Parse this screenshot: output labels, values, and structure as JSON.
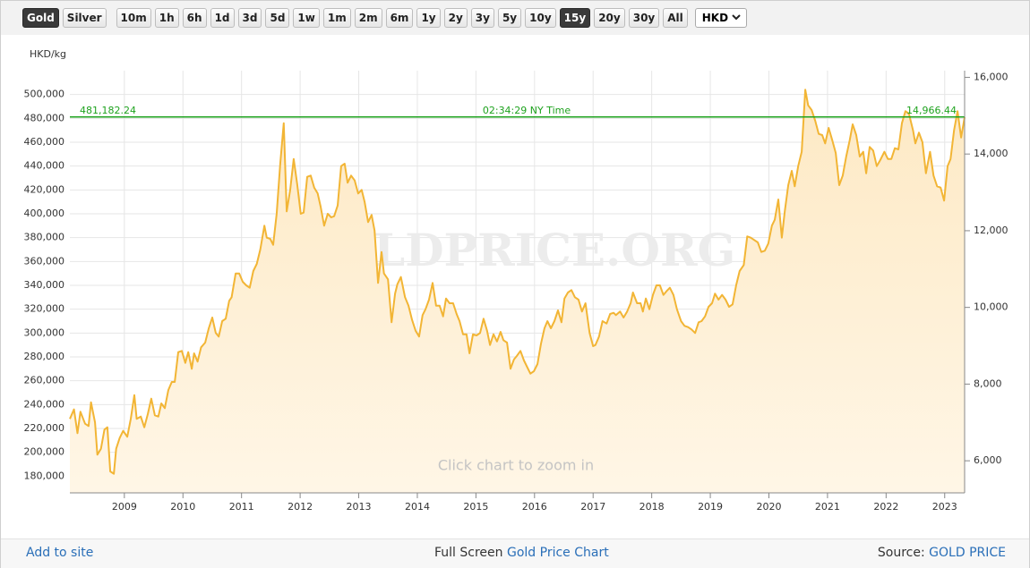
{
  "toolbar": {
    "metals": [
      "Gold",
      "Silver"
    ],
    "ranges": [
      "10m",
      "1h",
      "6h",
      "1d",
      "3d",
      "5d",
      "1w",
      "1m",
      "2m",
      "6m",
      "1y",
      "2y",
      "3y",
      "5y",
      "10y",
      "15y",
      "20y",
      "30y",
      "All"
    ],
    "currency": "HKD"
  },
  "chart_data": {
    "type": "area",
    "y_axis_label": "HKD/kg",
    "watermark": "GOLDPRICE.ORG",
    "hint": "Click chart to zoom in",
    "color": "#f2b535",
    "price_line": {
      "value": 481182.24,
      "label": "481,182.24",
      "y2_value": 14966.44,
      "y2_label": "14,966.44",
      "time": "02:34:29 NY Time",
      "color": "#1ea21e"
    },
    "grid": true,
    "xlim": [
      2008.07,
      2023.34
    ],
    "xticks": [
      2009,
      2010,
      2011,
      2012,
      2013,
      2014,
      2015,
      2016,
      2017,
      2018,
      2019,
      2020,
      2021,
      2022,
      2023
    ],
    "ylim": [
      166000,
      520000
    ],
    "yticks": [
      {
        "value": 180000,
        "label": "180,000"
      },
      {
        "value": 200000,
        "label": "200,000"
      },
      {
        "value": 220000,
        "label": "220,000"
      },
      {
        "value": 240000,
        "label": "240,000"
      },
      {
        "value": 260000,
        "label": "260,000"
      },
      {
        "value": 280000,
        "label": "280,000"
      },
      {
        "value": 300000,
        "label": "300,000"
      },
      {
        "value": 320000,
        "label": "320,000"
      },
      {
        "value": 340000,
        "label": "340,000"
      },
      {
        "value": 360000,
        "label": "360,000"
      },
      {
        "value": 380000,
        "label": "380,000"
      },
      {
        "value": 400000,
        "label": "400,000"
      },
      {
        "value": 420000,
        "label": "420,000"
      },
      {
        "value": 440000,
        "label": "440,000"
      },
      {
        "value": 460000,
        "label": "460,000"
      },
      {
        "value": 480000,
        "label": "480,000"
      },
      {
        "value": 500000,
        "label": "500,000"
      }
    ],
    "y2lim": [
      5163,
      16174
    ],
    "y2ticks": [
      {
        "value": 6000,
        "label": "6,000"
      },
      {
        "value": 8000,
        "label": "8,000"
      },
      {
        "value": 10000,
        "label": "10,000"
      },
      {
        "value": 12000,
        "label": "12,000"
      },
      {
        "value": 14000,
        "label": "14,000"
      },
      {
        "value": 16000,
        "label": "16,000"
      }
    ],
    "x": [
      2008.07,
      2008.14,
      2008.2,
      2008.25,
      2008.33,
      2008.39,
      2008.43,
      2008.5,
      2008.54,
      2008.6,
      2008.66,
      2008.71,
      2008.76,
      2008.82,
      2008.86,
      2008.92,
      2008.98,
      2009.05,
      2009.11,
      2009.17,
      2009.21,
      2009.28,
      2009.34,
      2009.4,
      2009.46,
      2009.52,
      2009.58,
      2009.63,
      2009.69,
      2009.75,
      2009.81,
      2009.86,
      2009.92,
      2009.98,
      2010.04,
      2010.09,
      2010.15,
      2010.19,
      2010.25,
      2010.31,
      2010.38,
      2010.44,
      2010.5,
      2010.56,
      2010.61,
      2010.67,
      2010.73,
      2010.79,
      2010.83,
      2010.9,
      2010.96,
      2011.02,
      2011.08,
      2011.14,
      2011.2,
      2011.26,
      2011.32,
      2011.39,
      2011.43,
      2011.49,
      2011.54,
      2011.6,
      2011.66,
      2011.72,
      2011.77,
      2011.83,
      2011.89,
      2011.95,
      2012.01,
      2012.06,
      2012.12,
      2012.18,
      2012.24,
      2012.3,
      2012.35,
      2012.41,
      2012.47,
      2012.53,
      2012.58,
      2012.64,
      2012.7,
      2012.76,
      2012.81,
      2012.87,
      2012.93,
      2012.99,
      2013.05,
      2013.1,
      2013.16,
      2013.22,
      2013.27,
      2013.33,
      2013.39,
      2013.43,
      2013.5,
      2013.56,
      2013.62,
      2013.66,
      2013.72,
      2013.79,
      2013.85,
      2013.91,
      2013.97,
      2014.03,
      2014.09,
      2014.14,
      2014.2,
      2014.26,
      2014.32,
      2014.38,
      2014.44,
      2014.49,
      2014.55,
      2014.61,
      2014.67,
      2014.72,
      2014.78,
      2014.84,
      2014.89,
      2014.95,
      2015.01,
      2015.07,
      2015.13,
      2015.19,
      2015.24,
      2015.3,
      2015.36,
      2015.42,
      2015.47,
      2015.53,
      2015.59,
      2015.65,
      2015.7,
      2015.76,
      2015.82,
      2015.88,
      2015.93,
      2015.99,
      2016.05,
      2016.11,
      2016.17,
      2016.22,
      2016.28,
      2016.34,
      2016.4,
      2016.46,
      2016.51,
      2016.57,
      2016.63,
      2016.69,
      2016.75,
      2016.81,
      2016.87,
      2016.94,
      2017.0,
      2017.04,
      2017.1,
      2017.16,
      2017.23,
      2017.29,
      2017.35,
      2017.39,
      2017.46,
      2017.52,
      2017.58,
      2017.64,
      2017.68,
      2017.75,
      2017.81,
      2017.85,
      2017.9,
      2017.96,
      2018.02,
      2018.08,
      2018.14,
      2018.2,
      2018.25,
      2018.31,
      2018.37,
      2018.43,
      2018.5,
      2018.56,
      2018.62,
      2018.68,
      2018.74,
      2018.8,
      2018.85,
      2018.91,
      2018.97,
      2019.03,
      2019.08,
      2019.14,
      2019.2,
      2019.26,
      2019.32,
      2019.38,
      2019.44,
      2019.5,
      2019.57,
      2019.63,
      2019.69,
      2019.75,
      2019.81,
      2019.87,
      2019.93,
      2019.99,
      2020.05,
      2020.1,
      2020.16,
      2020.22,
      2020.27,
      2020.33,
      2020.39,
      2020.44,
      2020.5,
      2020.56,
      2020.62,
      2020.67,
      2020.73,
      2020.79,
      2020.85,
      2020.91,
      2020.96,
      2021.02,
      2021.08,
      2021.14,
      2021.2,
      2021.26,
      2021.32,
      2021.38,
      2021.43,
      2021.49,
      2021.55,
      2021.61,
      2021.66,
      2021.72,
      2021.78,
      2021.84,
      2021.9,
      2021.97,
      2022.03,
      2022.09,
      2022.15,
      2022.21,
      2022.27,
      2022.33,
      2022.39,
      2022.46,
      2022.5,
      2022.56,
      2022.62,
      2022.68,
      2022.75,
      2022.81,
      2022.87,
      2022.93,
      2022.99,
      2023.05,
      2023.1,
      2023.16,
      2023.22,
      2023.28,
      2023.34
    ],
    "values": [
      228000,
      236000,
      216000,
      234000,
      224000,
      222000,
      242000,
      225000,
      198000,
      203000,
      219000,
      221000,
      184000,
      182000,
      203000,
      212000,
      218000,
      213000,
      228000,
      248000,
      228000,
      230000,
      221000,
      232000,
      245000,
      231000,
      230000,
      241000,
      237000,
      252000,
      259000,
      259000,
      284000,
      285000,
      275000,
      284000,
      270000,
      283000,
      276000,
      288000,
      292000,
      304000,
      313000,
      300000,
      297000,
      310000,
      312000,
      327000,
      330000,
      350000,
      350000,
      343000,
      340000,
      338000,
      352000,
      358000,
      370000,
      390000,
      380000,
      379000,
      374000,
      400000,
      442000,
      476000,
      402000,
      420000,
      446000,
      425000,
      400000,
      401000,
      431000,
      432000,
      422000,
      417000,
      406000,
      390000,
      400000,
      397000,
      398000,
      407000,
      440000,
      442000,
      426000,
      432000,
      428000,
      417000,
      420000,
      410000,
      393000,
      399000,
      386000,
      342000,
      368000,
      350000,
      345000,
      309000,
      333000,
      341000,
      347000,
      330000,
      323000,
      311000,
      302000,
      297000,
      315000,
      320000,
      328000,
      342000,
      323000,
      323000,
      314000,
      329000,
      325000,
      325000,
      316000,
      310000,
      299000,
      299000,
      283000,
      299000,
      298000,
      300000,
      312000,
      302000,
      290000,
      299000,
      293000,
      301000,
      294000,
      292000,
      270000,
      278000,
      281000,
      285000,
      277000,
      271000,
      266000,
      268000,
      274000,
      291000,
      304000,
      310000,
      304000,
      310000,
      319000,
      309000,
      329000,
      334000,
      336000,
      330000,
      328000,
      318000,
      325000,
      300000,
      289000,
      290000,
      297000,
      310000,
      308000,
      316000,
      317000,
      315000,
      318000,
      313000,
      318000,
      325000,
      334000,
      325000,
      325000,
      318000,
      329000,
      320000,
      332000,
      340000,
      340000,
      332000,
      335000,
      338000,
      332000,
      320000,
      310000,
      306000,
      305000,
      303000,
      300000,
      309000,
      310000,
      314000,
      322000,
      325000,
      333000,
      328000,
      332000,
      328000,
      322000,
      324000,
      340000,
      352000,
      357000,
      381000,
      380000,
      378000,
      376000,
      368000,
      369000,
      375000,
      390000,
      395000,
      412000,
      380000,
      402000,
      424000,
      436000,
      423000,
      440000,
      452000,
      504000,
      491000,
      487000,
      478000,
      467000,
      466000,
      459000,
      472000,
      462000,
      451000,
      424000,
      432000,
      448000,
      462000,
      475000,
      466000,
      448000,
      452000,
      434000,
      456000,
      453000,
      440000,
      445000,
      452000,
      446000,
      446000,
      455000,
      454000,
      476000,
      486000,
      484000,
      470000,
      459000,
      468000,
      460000,
      434000,
      452000,
      432000,
      423000,
      422000,
      411000,
      440000,
      446000,
      470000,
      486000,
      464000,
      481000
    ]
  },
  "footer": {
    "left_link": "Add to site",
    "center_text": "Full Screen",
    "center_link": "Gold Price Chart",
    "right_text": "Source:",
    "right_link": "GOLD PRICE"
  }
}
